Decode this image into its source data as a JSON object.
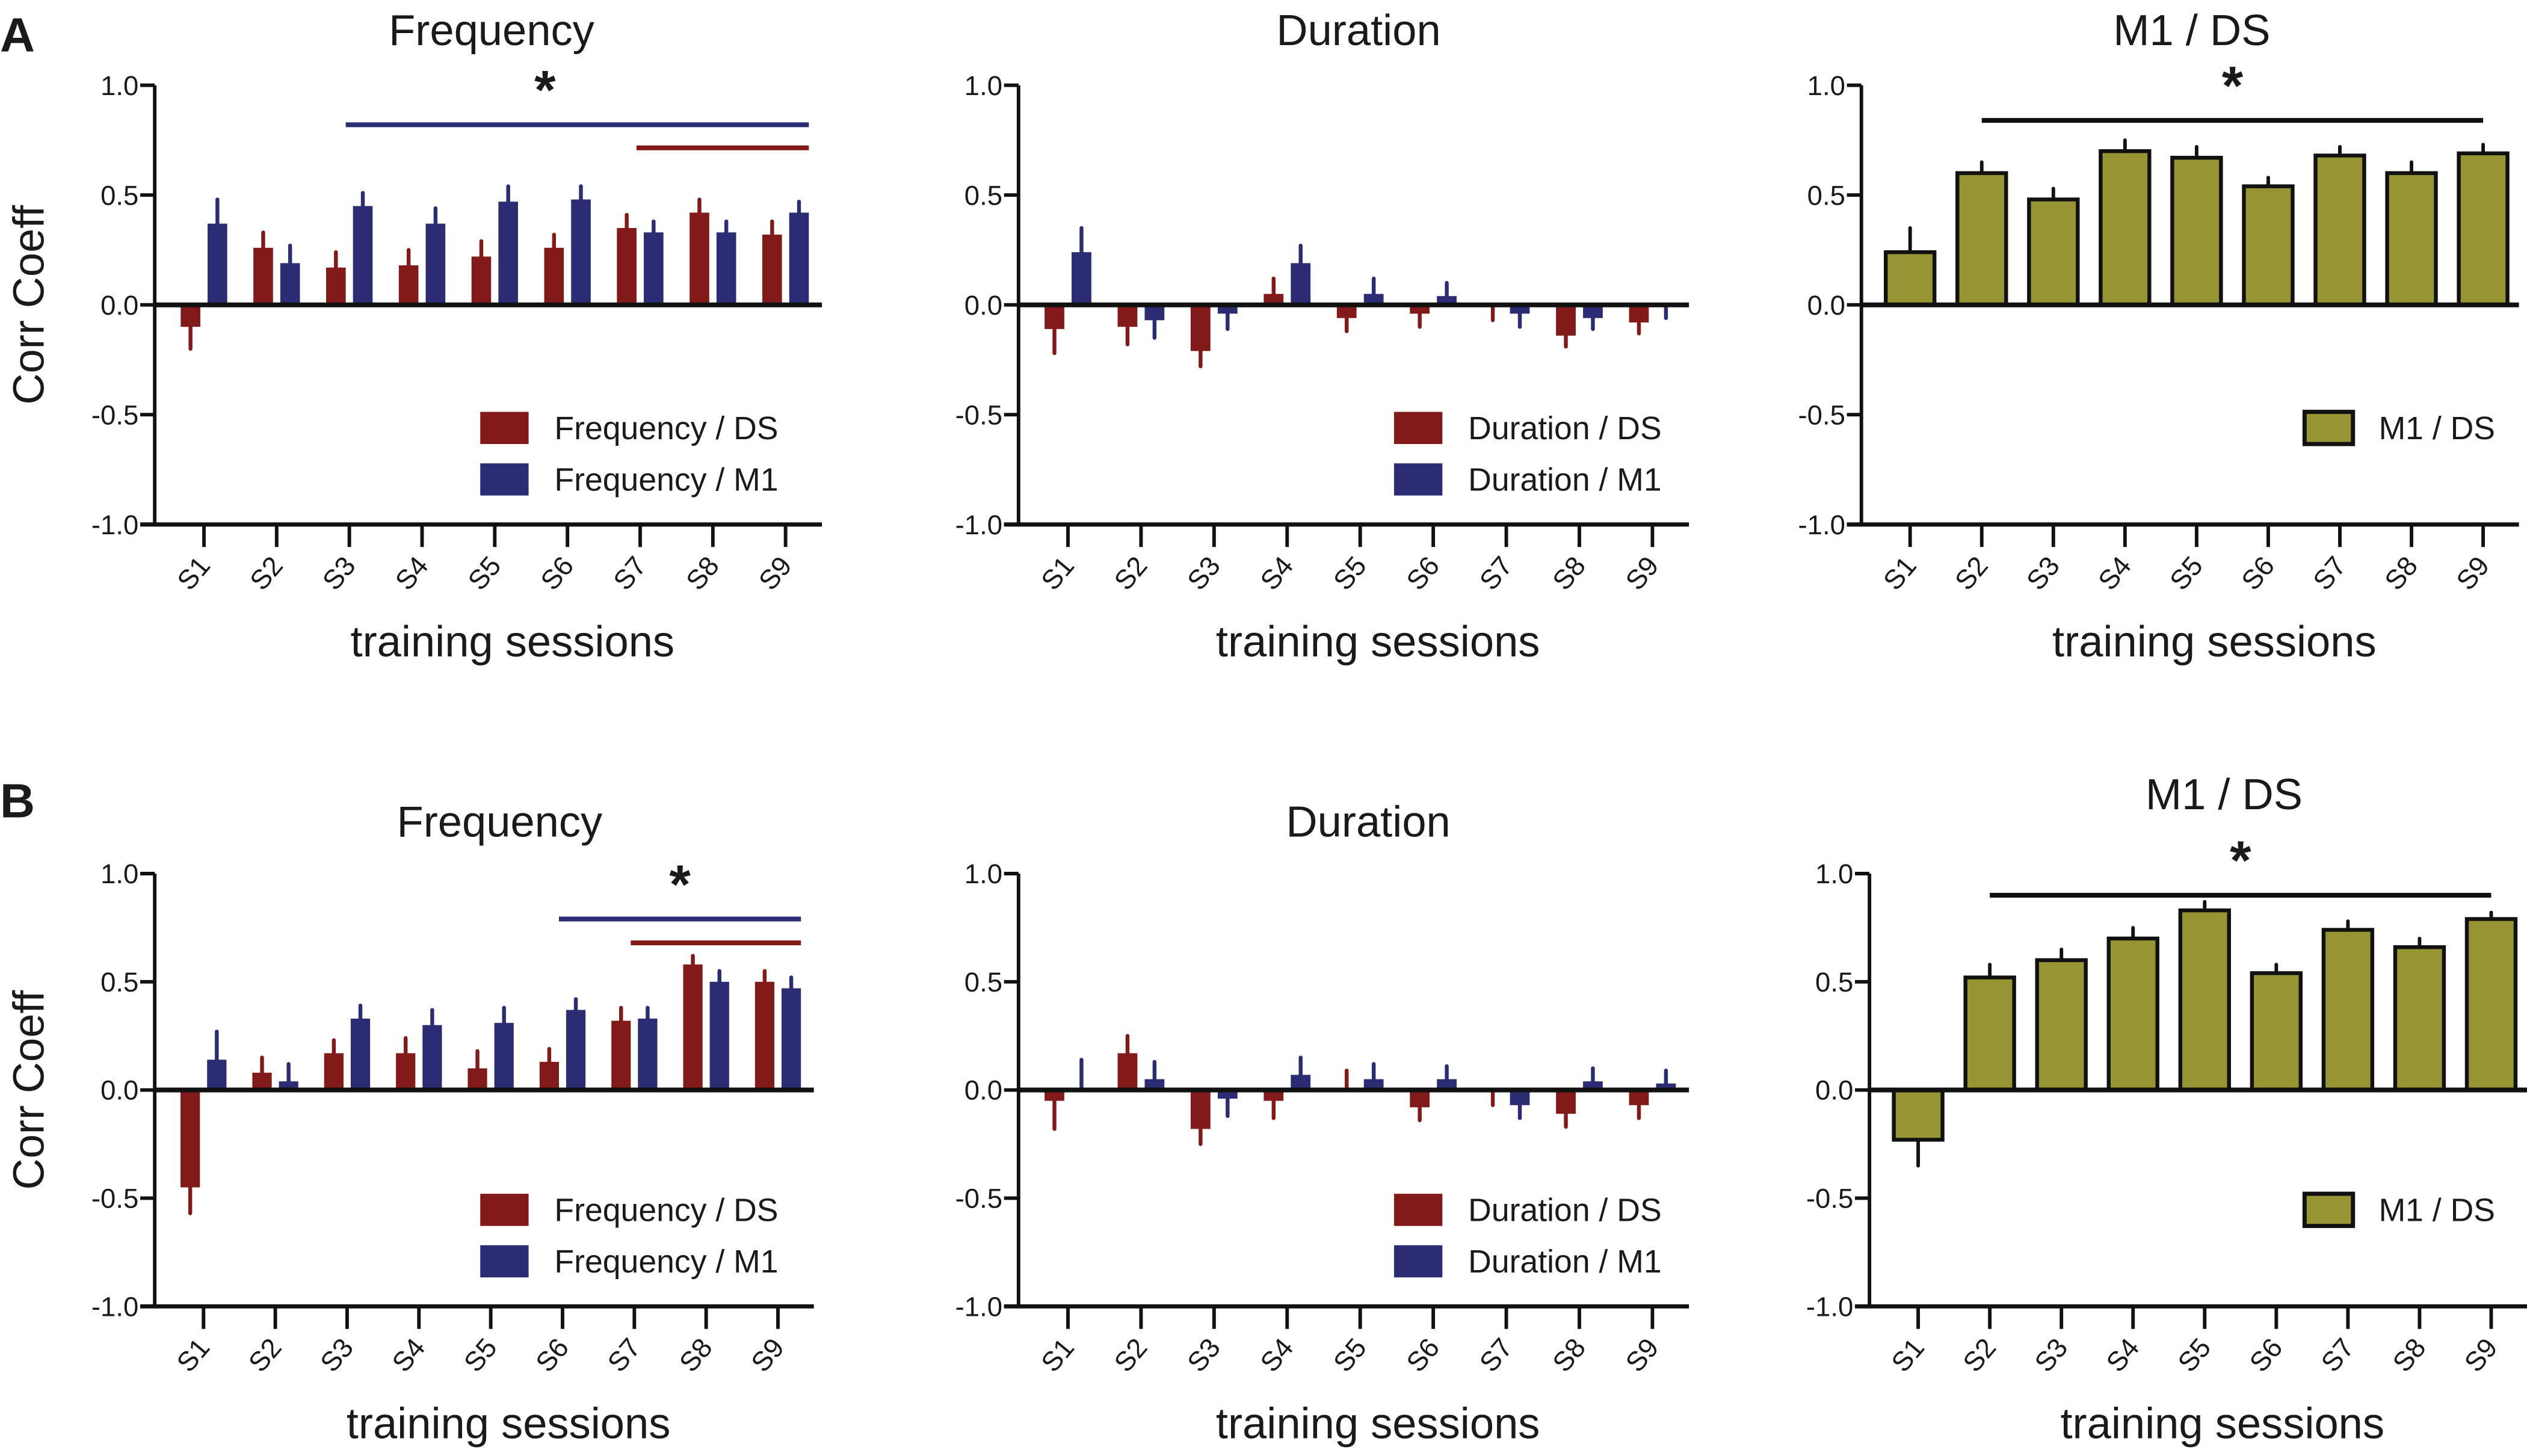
{
  "figure": {
    "panel_letters": [
      "A",
      "B"
    ]
  },
  "colors": {
    "ds_red": "#821a1a",
    "m1_blue": "#2c2c74",
    "olive": "#969433",
    "axis": "#111111"
  },
  "chart_data": [
    {
      "id": "A-frequency",
      "row": "A",
      "type": "bar",
      "title": "Frequency",
      "xlabel": "training sessions",
      "ylabel": "Corr Coeff",
      "ylim": [
        -1.0,
        1.0
      ],
      "yticks": [
        "1.0",
        "0.5",
        "0.0",
        "-0.5",
        "-1.0"
      ],
      "ytick_values": [
        1.0,
        0.5,
        0.0,
        -0.5,
        -1.0
      ],
      "categories": [
        "S1",
        "S2",
        "S3",
        "S4",
        "S5",
        "S6",
        "S7",
        "S8",
        "S9"
      ],
      "legend_position": "bottom-right",
      "series": [
        {
          "name": "Frequency / DS",
          "color_key": "ds_red",
          "values": [
            -0.1,
            0.26,
            0.17,
            0.18,
            0.22,
            0.26,
            0.35,
            0.42,
            0.32
          ],
          "error": [
            0.1,
            0.07,
            0.07,
            0.07,
            0.07,
            0.06,
            0.06,
            0.06,
            0.06
          ]
        },
        {
          "name": "Frequency / M1",
          "color_key": "m1_blue",
          "values": [
            0.37,
            0.19,
            0.45,
            0.37,
            0.47,
            0.48,
            0.33,
            0.33,
            0.42
          ],
          "error": [
            0.11,
            0.08,
            0.06,
            0.07,
            0.07,
            0.06,
            0.05,
            0.05,
            0.05
          ]
        }
      ],
      "significance": [
        {
          "label": "*",
          "color_key": "m1_blue",
          "y": 0.82,
          "from": "S3",
          "to": "S9"
        },
        {
          "label": "",
          "color_key": "ds_red",
          "y": 0.715,
          "from": "S7",
          "to": "S9"
        }
      ]
    },
    {
      "id": "A-duration",
      "row": "A",
      "type": "bar",
      "title": "Duration",
      "xlabel": "training sessions",
      "ylabel": "",
      "ylim": [
        -1.0,
        1.0
      ],
      "yticks": [
        "1.0",
        "0.5",
        "0.0",
        "-0.5",
        "-1.0"
      ],
      "ytick_values": [
        1.0,
        0.5,
        0.0,
        -0.5,
        -1.0
      ],
      "categories": [
        "S1",
        "S2",
        "S3",
        "S4",
        "S5",
        "S6",
        "S7",
        "S8",
        "S9"
      ],
      "legend_position": "bottom-right",
      "series": [
        {
          "name": "Duration / DS",
          "color_key": "ds_red",
          "values": [
            -0.11,
            -0.1,
            -0.21,
            0.05,
            -0.06,
            -0.04,
            -0.01,
            -0.14,
            -0.08
          ],
          "error": [
            0.11,
            0.08,
            0.07,
            0.07,
            0.06,
            0.06,
            0.06,
            0.05,
            0.05
          ]
        },
        {
          "name": "Duration / M1",
          "color_key": "m1_blue",
          "values": [
            0.24,
            -0.07,
            -0.04,
            0.19,
            0.05,
            0.04,
            -0.04,
            -0.06,
            -0.01
          ],
          "error": [
            0.11,
            0.08,
            0.07,
            0.08,
            0.07,
            0.06,
            0.06,
            0.05,
            0.05
          ]
        }
      ],
      "significance": []
    },
    {
      "id": "A-m1-ds",
      "row": "A",
      "type": "bar",
      "title": "M1 / DS",
      "xlabel": "training sessions",
      "ylabel": "",
      "ylim": [
        -1.0,
        1.0
      ],
      "yticks": [
        "1.0",
        "0.5",
        "0.0",
        "-0.5",
        "-1.0"
      ],
      "ytick_values": [
        1.0,
        0.5,
        0.0,
        -0.5,
        -1.0
      ],
      "categories": [
        "S1",
        "S2",
        "S3",
        "S4",
        "S5",
        "S6",
        "S7",
        "S8",
        "S9"
      ],
      "legend_position": "bottom-right",
      "series": [
        {
          "name": "M1 / DS",
          "color_key": "olive",
          "values": [
            0.24,
            0.6,
            0.48,
            0.7,
            0.67,
            0.54,
            0.68,
            0.6,
            0.69
          ],
          "error": [
            0.11,
            0.05,
            0.05,
            0.05,
            0.05,
            0.04,
            0.04,
            0.05,
            0.04
          ]
        }
      ],
      "significance": [
        {
          "label": "*",
          "color_key": "axis",
          "y": 0.84,
          "from": "S2",
          "to": "S9"
        }
      ]
    },
    {
      "id": "B-frequency",
      "row": "B",
      "type": "bar",
      "title": "Frequency",
      "xlabel": "training sessions",
      "ylabel": "Corr Coeff",
      "ylim": [
        -1.0,
        1.0
      ],
      "yticks": [
        "1.0",
        "0.5",
        "0.0",
        "-0.5",
        "-1.0"
      ],
      "ytick_values": [
        1.0,
        0.5,
        0.0,
        -0.5,
        -1.0
      ],
      "categories": [
        "S1",
        "S2",
        "S3",
        "S4",
        "S5",
        "S6",
        "S7",
        "S8",
        "S9"
      ],
      "legend_position": "bottom-right",
      "series": [
        {
          "name": "Frequency / DS",
          "color_key": "ds_red",
          "values": [
            -0.45,
            0.08,
            0.17,
            0.17,
            0.1,
            0.13,
            0.32,
            0.58,
            0.5
          ],
          "error": [
            0.12,
            0.07,
            0.06,
            0.07,
            0.08,
            0.06,
            0.06,
            0.04,
            0.05
          ]
        },
        {
          "name": "Frequency / M1",
          "color_key": "m1_blue",
          "values": [
            0.14,
            0.04,
            0.33,
            0.3,
            0.31,
            0.37,
            0.33,
            0.5,
            0.47
          ],
          "error": [
            0.13,
            0.08,
            0.06,
            0.07,
            0.07,
            0.05,
            0.05,
            0.05,
            0.05
          ]
        }
      ],
      "significance": [
        {
          "label": "*",
          "color_key": "m1_blue",
          "y": 0.79,
          "from": "S6",
          "to": "S9"
        },
        {
          "label": "",
          "color_key": "ds_red",
          "y": 0.68,
          "from": "S7",
          "to": "S9"
        }
      ]
    },
    {
      "id": "B-duration",
      "row": "B",
      "type": "bar",
      "title": "Duration",
      "xlabel": "training sessions",
      "ylabel": "",
      "ylim": [
        -1.0,
        1.0
      ],
      "yticks": [
        "1.0",
        "0.5",
        "0.0",
        "-0.5",
        "-1.0"
      ],
      "ytick_values": [
        1.0,
        0.5,
        0.0,
        -0.5,
        -1.0
      ],
      "categories": [
        "S1",
        "S2",
        "S3",
        "S4",
        "S5",
        "S6",
        "S7",
        "S8",
        "S9"
      ],
      "legend_position": "bottom-right",
      "series": [
        {
          "name": "Duration / DS",
          "color_key": "ds_red",
          "values": [
            -0.05,
            0.17,
            -0.18,
            -0.05,
            0.01,
            -0.08,
            -0.01,
            -0.11,
            -0.07
          ],
          "error": [
            0.13,
            0.08,
            0.07,
            0.08,
            0.08,
            0.06,
            0.06,
            0.06,
            0.06
          ]
        },
        {
          "name": "Duration / M1",
          "color_key": "m1_blue",
          "values": [
            0.0,
            0.05,
            -0.04,
            0.07,
            0.05,
            0.05,
            -0.07,
            0.04,
            0.03
          ],
          "error": [
            0.14,
            0.08,
            0.08,
            0.08,
            0.07,
            0.06,
            0.06,
            0.06,
            0.06
          ]
        }
      ],
      "significance": []
    },
    {
      "id": "B-m1-ds",
      "row": "B",
      "type": "bar",
      "title": "M1 / DS",
      "xlabel": "training sessions",
      "ylabel": "",
      "ylim": [
        -1.0,
        1.0
      ],
      "yticks": [
        "1.0",
        "0.5",
        "0.0",
        "-0.5",
        "-1.0"
      ],
      "ytick_values": [
        1.0,
        0.5,
        0.0,
        -0.5,
        -1.0
      ],
      "categories": [
        "S1",
        "S2",
        "S3",
        "S4",
        "S5",
        "S6",
        "S7",
        "S8",
        "S9"
      ],
      "legend_position": "bottom-right",
      "series": [
        {
          "name": "M1 / DS",
          "color_key": "olive",
          "values": [
            -0.23,
            0.52,
            0.6,
            0.7,
            0.83,
            0.54,
            0.74,
            0.66,
            0.79
          ],
          "error": [
            0.12,
            0.06,
            0.05,
            0.05,
            0.04,
            0.04,
            0.04,
            0.04,
            0.03
          ]
        }
      ],
      "significance": [
        {
          "label": "*",
          "color_key": "axis",
          "y": 0.9,
          "from": "S2",
          "to": "S9"
        }
      ]
    }
  ]
}
